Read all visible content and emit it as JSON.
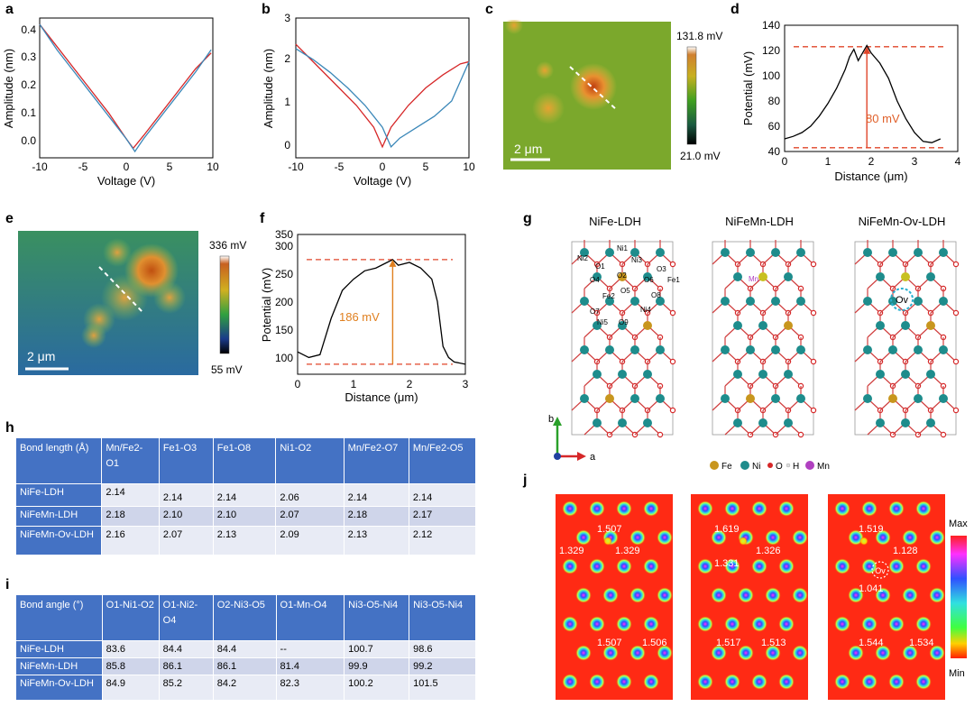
{
  "labels": {
    "a": "a",
    "b": "b",
    "c": "c",
    "d": "d",
    "e": "e",
    "f": "f",
    "g": "g",
    "h": "h",
    "i": "i",
    "j": "j"
  },
  "panel_a": {
    "xlabel": "Voltage (V)",
    "ylabel": "Amplitude (nm)",
    "xticks": [
      "-10",
      "-5",
      "0",
      "5",
      "10"
    ],
    "yticks": [
      "0.0",
      "0.1",
      "0.2",
      "0.3",
      "0.4"
    ]
  },
  "panel_b": {
    "xlabel": "Voltage (V)",
    "ylabel": "Amplitude (nm)",
    "xticks": [
      "-10",
      "-5",
      "0",
      "5",
      "10"
    ],
    "yticks": [
      "0",
      "1",
      "2",
      "3"
    ]
  },
  "panel_c": {
    "cbar_max": "131.8  mV",
    "cbar_min": "21.0 mV",
    "scale": "2 μm"
  },
  "panel_d": {
    "xlabel": "Distance (μm)",
    "ylabel": "Potential (mV)",
    "xticks": [
      "0",
      "1",
      "2",
      "3",
      "4"
    ],
    "yticks": [
      "40",
      "60",
      "80",
      "100",
      "120",
      "140"
    ],
    "annotation": "80 mV"
  },
  "panel_e": {
    "cbar_max": "336  mV",
    "cbar_min": "55 mV",
    "scale": "2 μm"
  },
  "panel_f": {
    "xlabel": "Distance (μm)",
    "ylabel": "Potential (mV)",
    "xticks": [
      "0",
      "1",
      "2",
      "3"
    ],
    "yticks": [
      "100",
      "150",
      "200",
      "250",
      "300",
      "350"
    ],
    "annotation": "186 mV"
  },
  "panel_g": {
    "titles": [
      "NiFe-LDH",
      "NiFeMn-LDH",
      "NiFeMn-Ov-LDH"
    ],
    "axis_b": "b",
    "axis_a": "a",
    "axis_c": "c",
    "legend": [
      {
        "label": "Fe",
        "color": "#c8961e"
      },
      {
        "label": "Ni",
        "color": "#1e8c8c"
      },
      {
        "label": "O",
        "color": "#d62728"
      },
      {
        "label": "H",
        "color": "#dddddd"
      },
      {
        "label": "Mn",
        "color": "#b040c0"
      }
    ],
    "atom_labels": {
      "ni1": "Ni1",
      "ni2": "Ni2",
      "ni3": "Ni3",
      "ni4": "Ni4",
      "ni5": "Ni5",
      "o1": "O1",
      "o2": "O2",
      "o3": "O3",
      "o4": "O4",
      "o5": "O5",
      "o6": "O6",
      "o7": "O7",
      "o8": "O8",
      "o9": "O9",
      "fe1": "Fe1",
      "fe2": "Fe2",
      "mn": "Mn",
      "ov": "Ov"
    }
  },
  "table_h": {
    "header": [
      "Bond length (Å)",
      "Mn/Fe2-O1",
      "Fe1-O3",
      "Fe1-O8",
      "Ni1-O2",
      "Mn/Fe2-O7",
      "Mn/Fe2-O5"
    ],
    "rows": [
      {
        "name": "NiFe-LDH",
        "values": [
          "2.14",
          "2.14",
          "2.14",
          "2.06",
          "2.14",
          "2.14"
        ]
      },
      {
        "name": "NiFeMn-LDH",
        "values": [
          "2.18",
          "2.10",
          "2.10",
          "2.07",
          "2.18",
          "2.17"
        ]
      },
      {
        "name": "NiFeMn-Ov-LDH",
        "values": [
          "2.16",
          "2.07",
          "2.13",
          "2.09",
          "2.13",
          "2.12"
        ]
      }
    ]
  },
  "table_i": {
    "header": [
      "Bond angle (°)",
      "O1-Ni1-O2",
      "O1-Ni2-O4",
      "O2-Ni3-O5",
      "O1-Mn-O4",
      "Ni3-O5-Ni4",
      "Ni3-O5-Ni4"
    ],
    "rows": [
      {
        "name": "NiFe-LDH",
        "values": [
          "83.6",
          "84.4",
          "84.4",
          "--",
          "100.7",
          "98.6"
        ]
      },
      {
        "name": "NiFeMn-LDH",
        "values": [
          "85.8",
          "86.1",
          "86.1",
          "81.4",
          "99.9",
          "99.2"
        ]
      },
      {
        "name": "NiFeMn-Ov-LDH",
        "values": [
          "84.9",
          "85.2",
          "84.2",
          "82.3",
          "100.2",
          "101.5"
        ]
      }
    ]
  },
  "panel_j": {
    "cbar_max": "Max",
    "cbar_min": "Min",
    "ov": "Ov",
    "maps": [
      {
        "top": "1.507",
        "left": "1.329",
        "right": "1.329",
        "bl": "1.507",
        "br": "1.506"
      },
      {
        "top": "1.619",
        "left": "1.331",
        "right": "1.326",
        "bl": "1.517",
        "br": "1.513"
      },
      {
        "top": "1.519",
        "left": "1.041",
        "right": "1.128",
        "bl": "1.544",
        "br": "1.534"
      }
    ]
  },
  "chart_data": [
    {
      "type": "line",
      "panel": "a",
      "xlabel": "Voltage (V)",
      "ylabel": "Amplitude (nm)",
      "xlim": [
        -10,
        10
      ],
      "ylim": [
        -0.02,
        0.42
      ],
      "series": [
        {
          "color": "#d62728",
          "x": [
            -10,
            -8,
            -6,
            -4,
            -2,
            0,
            0.8,
            2,
            4,
            6,
            8,
            9.8
          ],
          "y": [
            0.4,
            0.33,
            0.26,
            0.19,
            0.12,
            0.04,
            0.01,
            0.05,
            0.12,
            0.19,
            0.26,
            0.31
          ]
        },
        {
          "color": "#3a87b8",
          "x": [
            -10,
            -8,
            -6,
            -4,
            -2,
            0,
            1,
            2,
            4,
            6,
            8,
            9.8
          ],
          "y": [
            0.4,
            0.32,
            0.25,
            0.18,
            0.11,
            0.04,
            0.0,
            0.04,
            0.11,
            0.18,
            0.25,
            0.32
          ]
        }
      ]
    },
    {
      "type": "line",
      "panel": "b",
      "xlabel": "Voltage (V)",
      "ylabel": "Amplitude (nm)",
      "xlim": [
        -10,
        10
      ],
      "ylim": [
        -0.2,
        3.0
      ],
      "series": [
        {
          "color": "#d62728",
          "x": [
            -10,
            -9,
            -7,
            -5,
            -3,
            -1,
            0,
            1,
            3,
            5,
            7,
            9,
            10
          ],
          "y": [
            2.4,
            2.2,
            1.8,
            1.4,
            1.0,
            0.5,
            0.05,
            0.5,
            1.0,
            1.4,
            1.7,
            1.95,
            2.0
          ]
        },
        {
          "color": "#3a87b8",
          "x": [
            -10,
            -8,
            -6,
            -4,
            -2,
            0,
            1,
            2,
            4,
            6,
            8,
            10
          ],
          "y": [
            2.3,
            2.05,
            1.75,
            1.4,
            1.0,
            0.5,
            0.05,
            0.25,
            0.5,
            0.75,
            1.1,
            2.0
          ]
        }
      ]
    },
    {
      "type": "line",
      "panel": "d",
      "xlabel": "Distance (μm)",
      "ylabel": "Potential (mV)",
      "xlim": [
        0,
        4
      ],
      "ylim": [
        40,
        140
      ],
      "series": [
        {
          "color": "#000000",
          "x": [
            0,
            0.2,
            0.4,
            0.6,
            0.8,
            1.0,
            1.2,
            1.4,
            1.5,
            1.6,
            1.7,
            1.8,
            1.9,
            2.0,
            2.2,
            2.4,
            2.6,
            2.8,
            3.0,
            3.2,
            3.4,
            3.6
          ],
          "y": [
            50,
            52,
            55,
            60,
            68,
            78,
            90,
            105,
            115,
            121,
            112,
            118,
            124,
            118,
            110,
            98,
            80,
            66,
            55,
            48,
            47,
            50
          ]
        }
      ],
      "dashed_lines_y": [
        123,
        43
      ]
    },
    {
      "type": "line",
      "panel": "f",
      "xlabel": "Distance (μm)",
      "ylabel": "Potential (mV)",
      "xlim": [
        0,
        3
      ],
      "ylim": [
        100,
        350
      ],
      "series": [
        {
          "color": "#000000",
          "x": [
            0,
            0.2,
            0.4,
            0.6,
            0.8,
            1.0,
            1.2,
            1.4,
            1.6,
            1.7,
            1.8,
            2.0,
            2.2,
            2.4,
            2.5,
            2.6,
            2.7,
            2.8,
            3.0
          ],
          "y": [
            140,
            130,
            135,
            200,
            250,
            270,
            285,
            290,
            300,
            305,
            295,
            300,
            290,
            270,
            230,
            150,
            130,
            122,
            118
          ]
        }
      ],
      "dashed_lines_y": [
        305,
        118
      ]
    }
  ]
}
